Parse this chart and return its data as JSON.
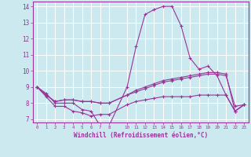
{
  "xlabel": "Windchill (Refroidissement éolien,°C)",
  "background_color": "#cde9f0",
  "grid_color": "#ffffff",
  "line_color": "#993399",
  "xlim": [
    -0.5,
    23.5
  ],
  "ylim": [
    6.8,
    14.3
  ],
  "xticks": [
    0,
    1,
    2,
    3,
    4,
    5,
    6,
    7,
    8,
    10,
    11,
    12,
    13,
    14,
    15,
    16,
    17,
    18,
    19,
    20,
    21,
    22,
    23
  ],
  "yticks": [
    7,
    8,
    9,
    10,
    11,
    12,
    13,
    14
  ],
  "hours": [
    0,
    1,
    2,
    3,
    4,
    5,
    6,
    7,
    8,
    10,
    11,
    12,
    13,
    14,
    15,
    16,
    17,
    18,
    19,
    20,
    21,
    22,
    23
  ],
  "line1": [
    9.0,
    8.6,
    8.0,
    8.0,
    8.0,
    7.6,
    7.5,
    6.6,
    6.6,
    9.0,
    11.5,
    13.5,
    13.8,
    14.0,
    14.0,
    12.8,
    10.8,
    10.1,
    10.3,
    9.7,
    8.5,
    7.5,
    7.9
  ],
  "line2": [
    9.0,
    8.5,
    8.1,
    8.2,
    8.2,
    8.1,
    8.1,
    8.0,
    8.0,
    8.5,
    8.8,
    9.0,
    9.2,
    9.4,
    9.5,
    9.6,
    9.7,
    9.8,
    9.9,
    9.9,
    9.8,
    7.5,
    7.9
  ],
  "line3": [
    9.0,
    8.5,
    8.1,
    8.2,
    8.2,
    8.1,
    8.1,
    8.0,
    8.0,
    8.5,
    8.7,
    8.9,
    9.1,
    9.3,
    9.4,
    9.5,
    9.6,
    9.7,
    9.8,
    9.8,
    9.7,
    7.8,
    7.9
  ],
  "line4": [
    9.0,
    8.4,
    7.8,
    7.8,
    7.5,
    7.4,
    7.2,
    7.3,
    7.3,
    7.9,
    8.1,
    8.2,
    8.3,
    8.4,
    8.4,
    8.4,
    8.4,
    8.5,
    8.5,
    8.5,
    8.5,
    7.5,
    7.9
  ]
}
